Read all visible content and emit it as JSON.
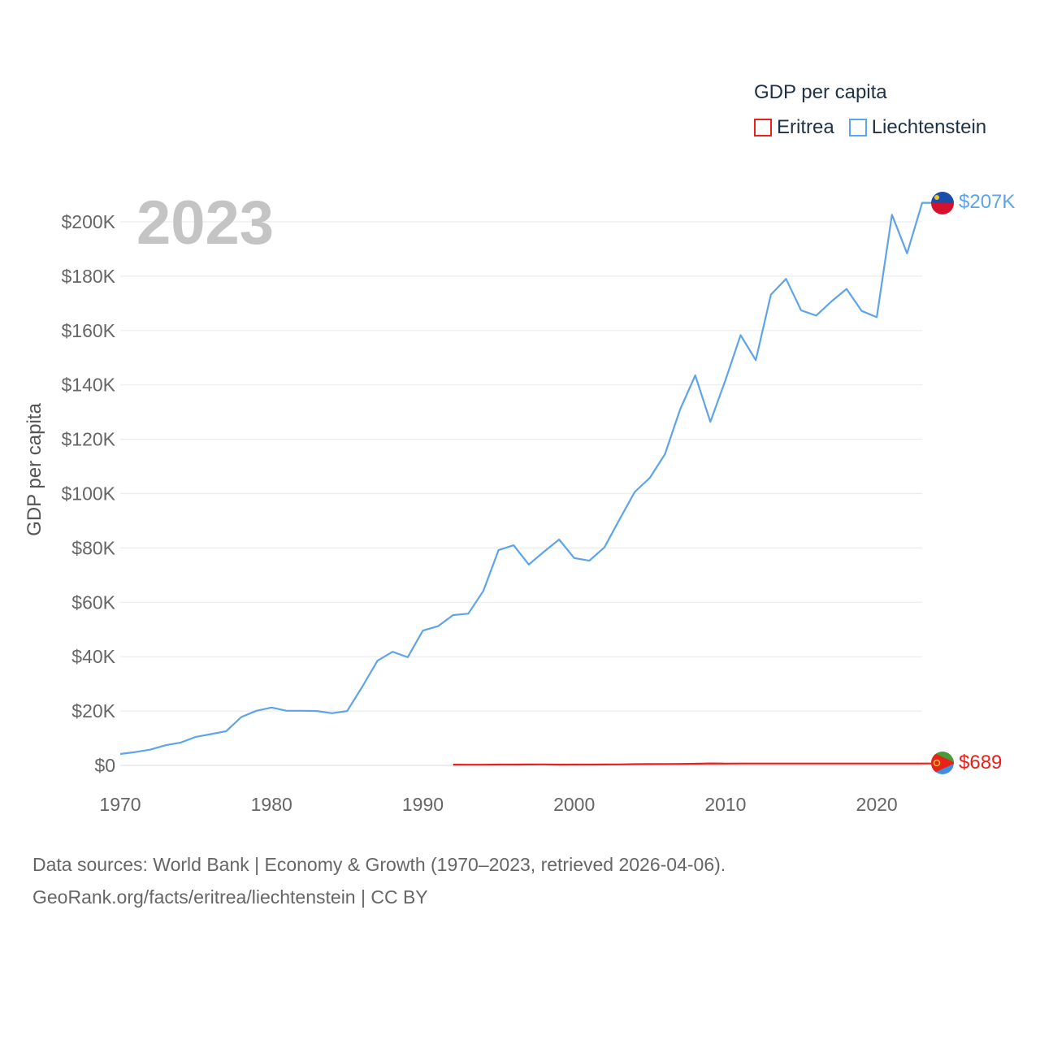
{
  "legend": {
    "title": "GDP per capita",
    "items": [
      {
        "label": "Eritrea",
        "color": "#e8221b"
      },
      {
        "label": "Liechtenstein",
        "color": "#5ea4e8"
      }
    ]
  },
  "year_display": "2023",
  "footer": {
    "line1": "Data sources: World Bank | Economy & Growth (1970–2023, retrieved 2026-04-06).",
    "line2": "GeoRank.org/facts/eritrea/liechtenstein | CC BY"
  },
  "chart_data": {
    "type": "line",
    "title": "",
    "xlabel": "",
    "ylabel": "GDP per capita",
    "xlim": [
      1970,
      2023
    ],
    "ylim": [
      0,
      200000
    ],
    "x_ticks": [
      1970,
      1980,
      1990,
      2000,
      2010,
      2020
    ],
    "y_ticks": [
      0,
      20000,
      40000,
      60000,
      80000,
      100000,
      120000,
      140000,
      160000,
      180000,
      200000
    ],
    "y_tick_labels": [
      "$0",
      "$20K",
      "$40K",
      "$60K",
      "$80K",
      "$100K",
      "$120K",
      "$140K",
      "$160K",
      "$180K",
      "$200K"
    ],
    "grid": true,
    "series": [
      {
        "name": "Liechtenstein",
        "color": "#5ea4e8",
        "end_label": "$207K",
        "x": [
          1970,
          1971,
          1972,
          1973,
          1974,
          1975,
          1976,
          1977,
          1978,
          1979,
          1980,
          1981,
          1982,
          1983,
          1984,
          1985,
          1986,
          1987,
          1988,
          1989,
          1990,
          1991,
          1992,
          1993,
          1994,
          1995,
          1996,
          1997,
          1998,
          1999,
          2000,
          2001,
          2002,
          2003,
          2004,
          2005,
          2006,
          2007,
          2008,
          2009,
          2010,
          2011,
          2012,
          2013,
          2014,
          2015,
          2016,
          2017,
          2018,
          2019,
          2020,
          2021,
          2022,
          2023
        ],
        "values": [
          4200,
          4900,
          5800,
          7400,
          8400,
          10500,
          11500,
          12600,
          17800,
          20100,
          21300,
          20100,
          20100,
          20000,
          19200,
          20000,
          29000,
          38500,
          41800,
          39800,
          49600,
          51200,
          55300,
          55800,
          64200,
          79200,
          81000,
          73900,
          78600,
          83100,
          76300,
          75300,
          80200,
          90500,
          100600,
          105800,
          114500,
          130900,
          143500,
          126400,
          141800,
          158300,
          149100,
          173200,
          179000,
          167400,
          165500,
          170700,
          175300,
          167200,
          164900,
          202600,
          188400,
          207000
        ]
      },
      {
        "name": "Eritrea",
        "color": "#e8221b",
        "end_label": "$689",
        "x": [
          1992,
          1993,
          1994,
          1995,
          1996,
          1997,
          1998,
          1999,
          2000,
          2001,
          2002,
          2003,
          2004,
          2005,
          2006,
          2007,
          2008,
          2009,
          2010,
          2011,
          2012,
          2013,
          2014,
          2015,
          2016,
          2017,
          2018,
          2019,
          2020,
          2021,
          2022,
          2023
        ],
        "values": [
          260,
          230,
          250,
          290,
          300,
          320,
          350,
          280,
          290,
          310,
          330,
          350,
          450,
          480,
          510,
          540,
          600,
          730,
          650,
          689,
          689,
          689,
          689,
          689,
          689,
          689,
          689,
          689,
          689,
          689,
          689,
          689
        ]
      }
    ]
  }
}
